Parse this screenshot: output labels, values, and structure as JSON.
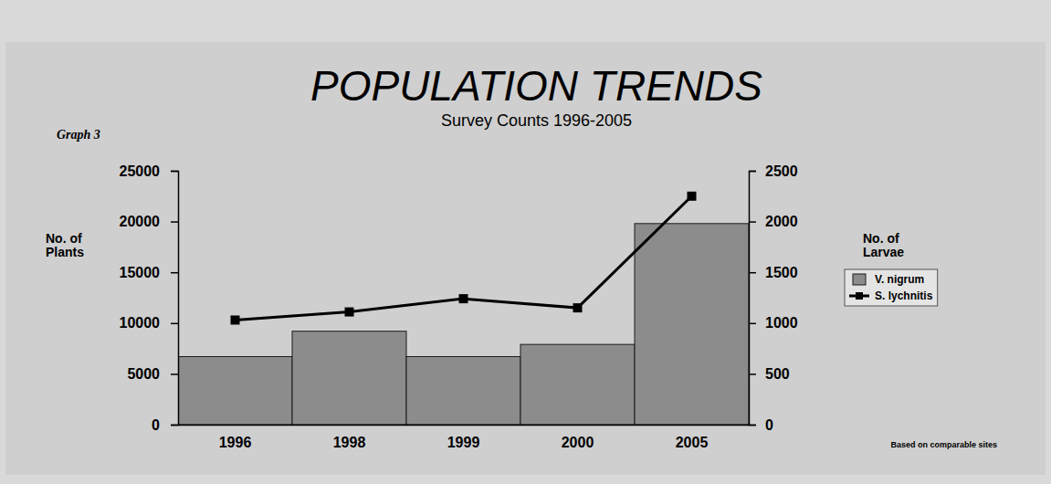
{
  "chart_data": {
    "type": "bar",
    "title": "POPULATION TRENDS",
    "subtitle": "Survey Counts 1996-2005",
    "annotations": [
      "Graph 3",
      "Based on comparable sites"
    ],
    "y_label": "No. of Plants",
    "y2_label": "No. of Larvae",
    "categories": [
      "1996",
      "1998",
      "1999",
      "2000",
      "2005"
    ],
    "series": [
      {
        "name": "V. nigrum",
        "type": "bar",
        "color": "#8c8c8c",
        "values": [
          6700,
          9200,
          6700,
          7900,
          19800
        ]
      },
      {
        "name": "S. lychnitis",
        "type": "line",
        "axis": "y2",
        "color": "#000000",
        "marker": "square",
        "values": [
          1030,
          1110,
          1240,
          1150,
          2250
        ]
      }
    ],
    "ylim": [
      0,
      25000
    ],
    "yticks": [
      0,
      5000,
      10000,
      15000,
      20000,
      25000
    ],
    "y2lim": [
      0,
      2500
    ],
    "y2ticks": [
      0,
      500,
      1000,
      1500,
      2000,
      2500
    ],
    "grid": false,
    "legend": "right"
  }
}
